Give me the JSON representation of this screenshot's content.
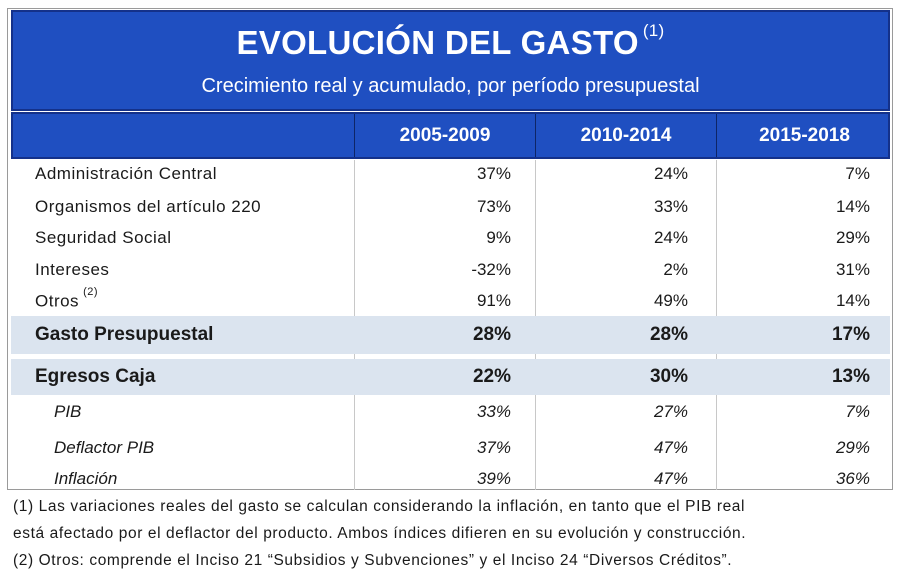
{
  "title": {
    "main": "EVOLUCIÓN DEL GASTO",
    "note_marker": "(1)",
    "subtitle": "Crecimiento real y acumulado, por período presupuestal"
  },
  "columns": [
    "2005-2009",
    "2010-2014",
    "2015-2018"
  ],
  "rows": [
    {
      "label": "Administración Central",
      "marker": "",
      "values": [
        "37%",
        "24%",
        "7%"
      ]
    },
    {
      "label": "Organismos del artículo 220",
      "marker": "",
      "values": [
        "73%",
        "33%",
        "14%"
      ]
    },
    {
      "label": "Seguridad Social",
      "marker": "",
      "values": [
        "9%",
        "24%",
        "29%"
      ]
    },
    {
      "label": "Intereses",
      "marker": "",
      "values": [
        "-32%",
        "2%",
        "31%"
      ]
    },
    {
      "label": "Otros",
      "marker": "(2)",
      "values": [
        "91%",
        "49%",
        "14%"
      ]
    },
    {
      "label": "Gasto Presupuestal",
      "marker": "",
      "values": [
        "28%",
        "28%",
        "17%"
      ]
    },
    {
      "label": "Egresos Caja",
      "marker": "",
      "values": [
        "22%",
        "30%",
        "13%"
      ]
    },
    {
      "label": "PIB",
      "marker": "",
      "values": [
        "33%",
        "27%",
        "7%"
      ]
    },
    {
      "label": "Deflactor PIB",
      "marker": "",
      "values": [
        "37%",
        "47%",
        "29%"
      ]
    },
    {
      "label": "Inflación",
      "marker": "",
      "values": [
        "39%",
        "47%",
        "36%"
      ]
    }
  ],
  "footnotes": [
    "(1) Las variaciones reales del gasto se calculan considerando la inflación, en tanto que el PIB real",
    "está afectado por el deflactor del producto. Ambos índices difieren en su evolución y construcción.",
    "(2) Otros: comprende el Inciso 21 “Subsidios y Subvenciones” y el Inciso 24 “Diversos Créditos”."
  ],
  "colors": {
    "header_blue": "#1f4fc1",
    "header_border": "#14318a",
    "highlight_row": "#dbe4ef"
  }
}
